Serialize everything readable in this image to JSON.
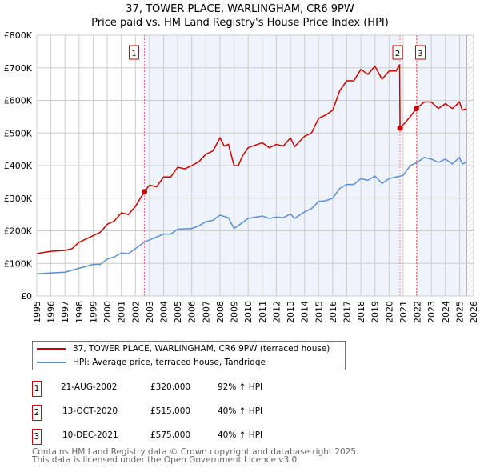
{
  "title": "37, TOWER PLACE, WARLINGHAM, CR6 9PW",
  "subtitle": "Price paid vs. HM Land Registry's House Price Index (HPI)",
  "chart_data": {
    "type": "line",
    "ylim": [
      0,
      800000
    ],
    "xlim": [
      1995,
      2026
    ],
    "yticks": [
      0,
      100000,
      200000,
      300000,
      400000,
      500000,
      600000,
      700000,
      800000
    ],
    "ytick_labels": [
      "£0",
      "£100K",
      "£200K",
      "£300K",
      "£400K",
      "£500K",
      "£600K",
      "£700K",
      "£800K"
    ],
    "xticks": [
      1995,
      1996,
      1997,
      1998,
      1999,
      2000,
      2001,
      2002,
      2003,
      2004,
      2005,
      2006,
      2007,
      2008,
      2009,
      2010,
      2011,
      2012,
      2013,
      2014,
      2015,
      2016,
      2017,
      2018,
      2019,
      2020,
      2021,
      2022,
      2023,
      2024,
      2025,
      2026
    ],
    "grid": true,
    "series": [
      {
        "name": "37, TOWER PLACE, WARLINGHAM, CR6 9PW (terraced house)",
        "color": "#cc0000",
        "x": [
          1995,
          1996,
          1997,
          1997.5,
          1998,
          1999,
          1999.5,
          2000,
          2000.5,
          2001,
          2001.5,
          2002,
          2002.64,
          2003,
          2003.5,
          2004,
          2004.5,
          2005,
          2005.5,
          2006,
          2006.5,
          2007,
          2007.5,
          2008,
          2008.3,
          2008.6,
          2009,
          2009.3,
          2009.6,
          2010,
          2011,
          2011.5,
          2012,
          2012.5,
          2013,
          2013.3,
          2014,
          2014.5,
          2015,
          2015.5,
          2016,
          2016.5,
          2017,
          2017.5,
          2018,
          2018.5,
          2019,
          2019.5,
          2020,
          2020.5,
          2020.75,
          2020.78,
          2021,
          2021.5,
          2021.94,
          2022.5,
          2023,
          2023.5,
          2024,
          2024.5,
          2025,
          2025.2,
          2025.5
        ],
        "y": [
          130000,
          137000,
          140000,
          145000,
          165000,
          185000,
          195000,
          220000,
          230000,
          255000,
          250000,
          275000,
          320000,
          340000,
          335000,
          365000,
          365000,
          395000,
          390000,
          400000,
          412000,
          435000,
          445000,
          485000,
          460000,
          465000,
          400000,
          400000,
          430000,
          455000,
          470000,
          455000,
          465000,
          460000,
          485000,
          458000,
          490000,
          500000,
          545000,
          555000,
          570000,
          630000,
          660000,
          660000,
          695000,
          680000,
          705000,
          665000,
          690000,
          690000,
          710000,
          515000,
          525000,
          550000,
          575000,
          595000,
          595000,
          575000,
          590000,
          575000,
          595000,
          570000,
          575000
        ]
      },
      {
        "name": "HPI: Average price, terraced house, Tandridge",
        "color": "#5b8fd4",
        "x": [
          1995,
          1996,
          1997,
          1998,
          1999,
          1999.5,
          2000,
          2000.5,
          2001,
          2001.5,
          2002,
          2002.64,
          2003,
          2004,
          2004.5,
          2005,
          2006,
          2006.5,
          2007,
          2007.5,
          2008,
          2008.6,
          2009,
          2009.5,
          2010,
          2011,
          2011.5,
          2012,
          2012.5,
          2013,
          2013.3,
          2014,
          2014.5,
          2015,
          2015.5,
          2016,
          2016.5,
          2017,
          2017.5,
          2018,
          2018.5,
          2019,
          2019.5,
          2020,
          2020.5,
          2021,
          2021.5,
          2022,
          2022.5,
          2023,
          2023.5,
          2024,
          2024.5,
          2025,
          2025.2,
          2025.5
        ],
        "y": [
          68000,
          71000,
          73000,
          85000,
          97000,
          97000,
          113000,
          120000,
          132000,
          130000,
          145000,
          166000,
          172000,
          190000,
          190000,
          205000,
          207000,
          215000,
          228000,
          232000,
          248000,
          240000,
          207000,
          222000,
          238000,
          245000,
          238000,
          242000,
          240000,
          252000,
          238000,
          258000,
          268000,
          290000,
          292000,
          300000,
          330000,
          342000,
          342000,
          360000,
          355000,
          368000,
          345000,
          360000,
          365000,
          370000,
          400000,
          410000,
          425000,
          420000,
          410000,
          420000,
          405000,
          425000,
          405000,
          410000
        ]
      }
    ],
    "sales": [
      {
        "label": "1",
        "x": 2002.64,
        "y": 320000
      },
      {
        "label": "2",
        "x": 2020.78,
        "y": 515000
      },
      {
        "label": "3",
        "x": 2021.94,
        "y": 575000
      }
    ],
    "shaded": [
      [
        2002.64,
        2020.78
      ],
      [
        2021.94,
        2025.5
      ]
    ],
    "hatched_from": 2025.5
  },
  "legend": [
    "37, TOWER PLACE, WARLINGHAM, CR6 9PW (terraced house)",
    "HPI: Average price, terraced house, Tandridge"
  ],
  "table": [
    {
      "n": "1",
      "date": "21-AUG-2002",
      "price": "£320,000",
      "hpi": "92% ↑ HPI"
    },
    {
      "n": "2",
      "date": "13-OCT-2020",
      "price": "£515,000",
      "hpi": "40% ↑ HPI"
    },
    {
      "n": "3",
      "date": "10-DEC-2021",
      "price": "£575,000",
      "hpi": "40% ↑ HPI"
    }
  ],
  "footer": [
    "Contains HM Land Registry data © Crown copyright and database right 2025.",
    "This data is licensed under the Open Government Licence v3.0."
  ]
}
